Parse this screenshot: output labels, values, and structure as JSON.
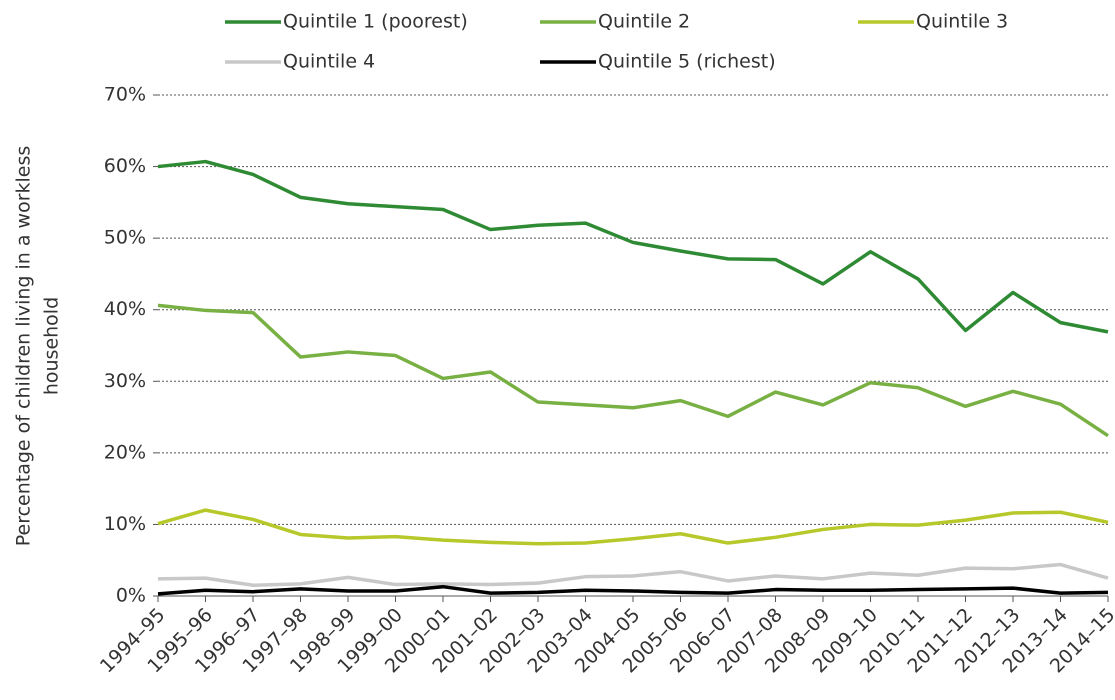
{
  "chart_data": {
    "type": "line",
    "ylabel": [
      "Percentage of children living in a workless",
      "household"
    ],
    "categories": [
      "1994–95",
      "1995–96",
      "1996–97",
      "1997–98",
      "1998–99",
      "1999–00",
      "2000–01",
      "2001–02",
      "2002–03",
      "2003–04",
      "2004–05",
      "2005–06",
      "2006–07",
      "2007–08",
      "2008–09",
      "2009–10",
      "2010–11",
      "2011–12",
      "2012–13",
      "2013–14",
      "2014–15"
    ],
    "series": [
      {
        "name": "Quintile 1 (poorest)",
        "color": "#2f8a34",
        "values": [
          60.0,
          60.7,
          58.9,
          55.7,
          54.8,
          54.4,
          54.0,
          51.2,
          51.8,
          52.1,
          49.4,
          48.2,
          47.1,
          47.0,
          43.6,
          48.1,
          44.3,
          37.1,
          42.4,
          38.2,
          36.9
        ]
      },
      {
        "name": "Quintile 2",
        "color": "#78b043",
        "values": [
          40.6,
          39.9,
          39.6,
          33.4,
          34.1,
          33.6,
          30.4,
          31.3,
          27.1,
          26.7,
          26.3,
          27.3,
          25.1,
          28.5,
          26.7,
          29.8,
          29.1,
          26.5,
          28.6,
          26.8,
          22.4
        ]
      },
      {
        "name": "Quintile 3",
        "color": "#b6c82a",
        "values": [
          10.1,
          12.0,
          10.7,
          8.6,
          8.1,
          8.3,
          7.8,
          7.5,
          7.3,
          7.4,
          8.0,
          8.7,
          7.4,
          8.2,
          9.3,
          10.0,
          9.9,
          10.6,
          11.6,
          11.7,
          10.3
        ]
      },
      {
        "name": "Quintile 4",
        "color": "#c8c8c8",
        "values": [
          2.4,
          2.5,
          1.5,
          1.7,
          2.6,
          1.6,
          1.7,
          1.6,
          1.8,
          2.7,
          2.8,
          3.4,
          2.1,
          2.8,
          2.4,
          3.2,
          2.9,
          3.9,
          3.8,
          4.4,
          2.5
        ]
      },
      {
        "name": "Quintile 5 (richest)",
        "color": "#000000",
        "values": [
          0.3,
          0.8,
          0.6,
          1.0,
          0.7,
          0.7,
          1.3,
          0.4,
          0.5,
          0.8,
          0.7,
          0.5,
          0.4,
          0.9,
          0.8,
          0.8,
          0.9,
          1.0,
          1.1,
          0.4,
          0.5
        ]
      }
    ],
    "ylim": [
      0,
      70
    ],
    "yticks": [
      {
        "value": 0,
        "label": "0%"
      },
      {
        "value": 10,
        "label": "10%"
      },
      {
        "value": 20,
        "label": "20%"
      },
      {
        "value": 30,
        "label": "30%"
      },
      {
        "value": 40,
        "label": "40%"
      },
      {
        "value": 50,
        "label": "50%"
      },
      {
        "value": 60,
        "label": "60%"
      },
      {
        "value": 70,
        "label": "70%"
      }
    ],
    "grid": true
  }
}
